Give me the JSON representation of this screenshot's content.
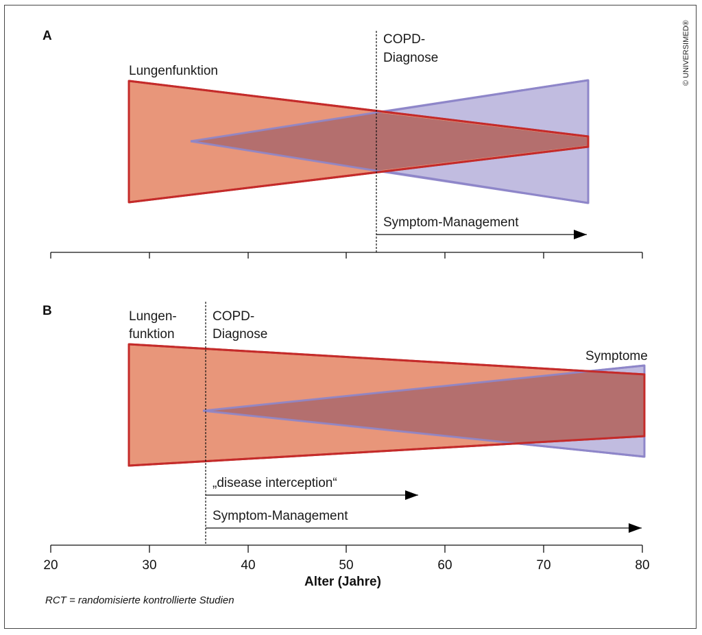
{
  "colors": {
    "lung_fill": "#e8967a",
    "lung_stroke": "#c42b2a",
    "symptom_fill": "#c1bce0",
    "symptom_stroke": "#8e86c9",
    "overlap_fill": "#b46f6e"
  },
  "copyright": "© UNIVERSIMED®",
  "axis": {
    "title": "Alter (Jahre)",
    "ticks": [
      "20",
      "30",
      "40",
      "50",
      "60",
      "70",
      "80"
    ]
  },
  "panel_a": {
    "label": "A",
    "lung_label": "Lungenfunktion",
    "diagnosis_line1": "COPD-",
    "diagnosis_line2": "Diagnose",
    "diagnosis_age": 53,
    "arrow_label": "Symptom-Management"
  },
  "panel_b": {
    "label": "B",
    "lung_label_line1": "Lungen-",
    "lung_label_line2": "funktion",
    "diagnosis_line1": "COPD-",
    "diagnosis_line2": "Diagnose",
    "diagnosis_age": 35.5,
    "symptom_label": "Symptome",
    "arrow1_label": "„disease interception“",
    "arrow2_label": "Symptom-Management"
  },
  "footnote": "RCT = randomisierte kontrollierte Studien"
}
